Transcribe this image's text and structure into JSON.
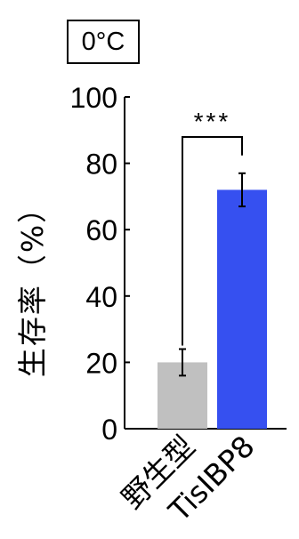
{
  "condition_label": "0°C",
  "chart_data": {
    "type": "bar",
    "ylabel": "生存率（%）",
    "ylim": [
      0,
      100
    ],
    "yticks": [
      "0",
      "20",
      "40",
      "60",
      "80",
      "100"
    ],
    "grid": false,
    "categories": [
      "野生型",
      "TisIBP8"
    ],
    "values": [
      20,
      72
    ],
    "error": [
      4,
      5
    ],
    "colors": [
      "#c0c0c0",
      "#3650f0"
    ],
    "significance": {
      "between": [
        0,
        1
      ],
      "label": "***"
    }
  }
}
